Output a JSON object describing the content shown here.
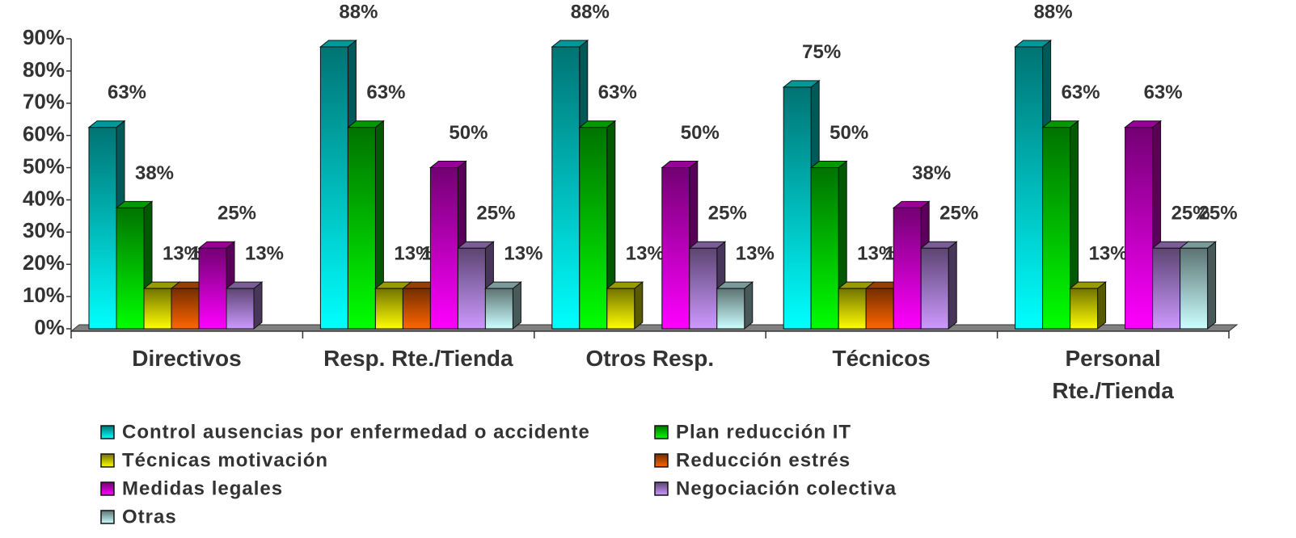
{
  "chart_data": {
    "type": "bar3d",
    "categories": [
      "Directivos",
      "Resp. Rte./Tienda",
      "Otros Resp.",
      "Técnicos",
      "Personal\nRte./Tienda"
    ],
    "series": [
      {
        "name": "Control ausencias por enfermedad o accidente",
        "color": "#00ffff",
        "values": [
          62.5,
          87.5,
          87.5,
          75,
          87.5
        ],
        "value_labels": [
          "63%",
          "88%",
          "88%",
          "75%",
          "88%"
        ]
      },
      {
        "name": "Plan reducción IT",
        "color": "#00ff00",
        "values": [
          37.5,
          62.5,
          62.5,
          50,
          62.5
        ],
        "value_labels": [
          "38%",
          "63%",
          "63%",
          "50%",
          "63%"
        ]
      },
      {
        "name": "Técnicas motivación",
        "color": "#ffff00",
        "values": [
          12.5,
          12.5,
          12.5,
          12.5,
          12.5
        ],
        "value_labels": [
          "13%",
          "13%",
          "13%",
          "13%",
          "13%"
        ]
      },
      {
        "name": "Reducción estrés",
        "color": "#ff6600",
        "values": [
          12.5,
          12.5,
          null,
          12.5,
          null
        ],
        "value_labels": [
          "13%",
          "13%",
          null,
          "13%",
          null
        ]
      },
      {
        "name": "Medidas legales",
        "color": "#ff00ff",
        "values": [
          25,
          50,
          50,
          37.5,
          62.5
        ],
        "value_labels": [
          "25%",
          "50%",
          "50%",
          "38%",
          "63%"
        ]
      },
      {
        "name": "Negociación colectiva",
        "color": "#cc99ff",
        "values": [
          12.5,
          25,
          25,
          25,
          25
        ],
        "value_labels": [
          "13%",
          "25%",
          "25%",
          "25%",
          "25%"
        ]
      },
      {
        "name": "Otras",
        "color": "#ccffff",
        "values": [
          null,
          12.5,
          12.5,
          null,
          25
        ],
        "value_labels": [
          null,
          "13%",
          "13%",
          null,
          "25%"
        ]
      }
    ],
    "ylim": [
      0,
      90
    ],
    "yticks": [
      {
        "value": 0,
        "label": "0%"
      },
      {
        "value": 10,
        "label": "10%"
      },
      {
        "value": 20,
        "label": "20%"
      },
      {
        "value": 30,
        "label": "30%"
      },
      {
        "value": 40,
        "label": "40%"
      },
      {
        "value": 50,
        "label": "50%"
      },
      {
        "value": 60,
        "label": "60%"
      },
      {
        "value": 70,
        "label": "70%"
      },
      {
        "value": 80,
        "label": "80%"
      },
      {
        "value": 90,
        "label": "90%"
      }
    ]
  }
}
